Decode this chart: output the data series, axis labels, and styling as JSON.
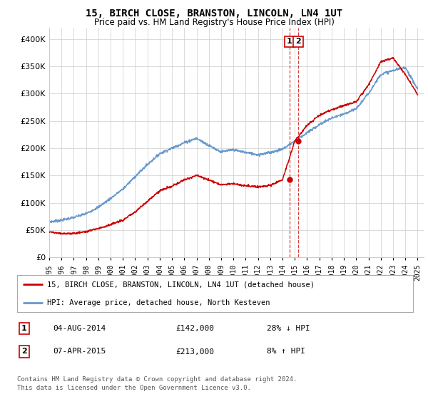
{
  "title": "15, BIRCH CLOSE, BRANSTON, LINCOLN, LN4 1UT",
  "subtitle": "Price paid vs. HM Land Registry's House Price Index (HPI)",
  "red_label": "15, BIRCH CLOSE, BRANSTON, LINCOLN, LN4 1UT (detached house)",
  "blue_label": "HPI: Average price, detached house, North Kesteven",
  "transactions": [
    {
      "num": "1",
      "date": "04-AUG-2014",
      "price": "£142,000",
      "hpi": "28% ↓ HPI"
    },
    {
      "num": "2",
      "date": "07-APR-2015",
      "price": "£213,000",
      "hpi": "8% ↑ HPI"
    }
  ],
  "footer1": "Contains HM Land Registry data © Crown copyright and database right 2024.",
  "footer2": "This data is licensed under the Open Government Licence v3.0.",
  "vline_x1": 2014.58,
  "vline_x2": 2015.27,
  "marker1_x": 2014.58,
  "marker1_y": 142000,
  "marker2_x": 2015.27,
  "marker2_y": 213000,
  "xlim": [
    1995,
    2025.5
  ],
  "ylim": [
    0,
    420000
  ],
  "yticks": [
    0,
    50000,
    100000,
    150000,
    200000,
    250000,
    300000,
    350000,
    400000
  ],
  "xticks": [
    1995,
    1996,
    1997,
    1998,
    1999,
    2000,
    2001,
    2002,
    2003,
    2004,
    2005,
    2006,
    2007,
    2008,
    2009,
    2010,
    2011,
    2012,
    2013,
    2014,
    2015,
    2016,
    2017,
    2018,
    2019,
    2020,
    2021,
    2022,
    2023,
    2024,
    2025
  ],
  "red_color": "#cc0000",
  "blue_color": "#6699cc",
  "vline_color": "#cc0000",
  "background_color": "#ffffff",
  "grid_color": "#cccccc",
  "hpi_years": [
    1995,
    1996,
    1997,
    1998,
    1999,
    2000,
    2001,
    2002,
    2003,
    2004,
    2005,
    2006,
    2007,
    2008,
    2009,
    2010,
    2011,
    2012,
    2013,
    2014,
    2015,
    2016,
    2017,
    2018,
    2019,
    2020,
    2021,
    2022,
    2023,
    2024,
    2025
  ],
  "hpi_values": [
    65000,
    68000,
    73000,
    80000,
    92000,
    108000,
    125000,
    148000,
    170000,
    190000,
    200000,
    210000,
    218000,
    205000,
    193000,
    197000,
    192000,
    188000,
    192000,
    198000,
    213000,
    228000,
    243000,
    255000,
    262000,
    272000,
    300000,
    335000,
    342000,
    348000,
    308000
  ],
  "red_years": [
    1995,
    1996,
    1997,
    1998,
    1999,
    2000,
    2001,
    2002,
    2003,
    2004,
    2005,
    2006,
    2007,
    2008,
    2009,
    2010,
    2011,
    2012,
    2013,
    2014,
    2015,
    2016,
    2017,
    2018,
    2019,
    2020,
    2021,
    2022,
    2023,
    2024,
    2025
  ],
  "red_values": [
    47000,
    43000,
    44000,
    47000,
    53000,
    60000,
    68000,
    83000,
    103000,
    122000,
    130000,
    142000,
    150000,
    142000,
    133000,
    135000,
    131000,
    129000,
    132000,
    142000,
    213000,
    242000,
    260000,
    270000,
    278000,
    285000,
    315000,
    358000,
    365000,
    335000,
    298000
  ]
}
